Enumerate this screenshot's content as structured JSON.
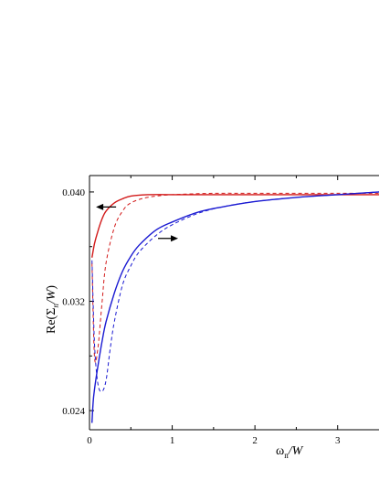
{
  "chart_data": {
    "type": "line",
    "xlabel": "ω_n/W",
    "ylabel": "Re(Σ_n/W)",
    "xlim": [
      0,
      3.5
    ],
    "ylim": [
      0.0226,
      0.0412
    ],
    "x_ticks": [
      0,
      1,
      2,
      3
    ],
    "x_tick_labels": [
      "0",
      "1",
      "2",
      "3"
    ],
    "y_ticks": [
      0.024,
      0.032,
      0.04
    ],
    "y_tick_labels": [
      "0.024",
      "0.032",
      "0.040"
    ],
    "grid": false,
    "colors": {
      "red": "#d21a1a",
      "blue": "#1a1ad2",
      "axis": "#000000"
    },
    "series": [
      {
        "color": "red",
        "style": "solid",
        "x": [
          0.03,
          0.06,
          0.1,
          0.15,
          0.2,
          0.3,
          0.4,
          0.5,
          0.7,
          1.0,
          1.5,
          2.0,
          2.5,
          3.0,
          3.5
        ],
        "y": [
          0.0352,
          0.0362,
          0.0371,
          0.038,
          0.0386,
          0.0392,
          0.0395,
          0.0397,
          0.0398,
          0.0398,
          0.0398,
          0.0398,
          0.0398,
          0.0398,
          0.0398
        ]
      },
      {
        "color": "red",
        "style": "dashed",
        "x": [
          0.03,
          0.06,
          0.1,
          0.15,
          0.2,
          0.3,
          0.4,
          0.5,
          0.7,
          1.0,
          1.5,
          2.0,
          2.5,
          3.0,
          3.5
        ],
        "y": [
          0.0348,
          0.028,
          0.0285,
          0.0318,
          0.0348,
          0.0374,
          0.0386,
          0.0392,
          0.0396,
          0.0398,
          0.0399,
          0.0399,
          0.0399,
          0.0399,
          0.0399
        ]
      },
      {
        "color": "blue",
        "style": "solid",
        "x": [
          0.03,
          0.05,
          0.1,
          0.15,
          0.2,
          0.3,
          0.4,
          0.5,
          0.6,
          0.8,
          1.0,
          1.3,
          1.6,
          2.0,
          2.5,
          3.0,
          3.5
        ],
        "y": [
          0.0231,
          0.025,
          0.0272,
          0.029,
          0.0305,
          0.0326,
          0.0342,
          0.0353,
          0.0361,
          0.0372,
          0.0378,
          0.0385,
          0.0389,
          0.0393,
          0.0396,
          0.0398,
          0.04
        ]
      },
      {
        "color": "blue",
        "style": "dashed",
        "x": [
          0.03,
          0.06,
          0.1,
          0.15,
          0.2,
          0.25,
          0.3,
          0.4,
          0.5,
          0.6,
          0.8,
          1.0,
          1.3,
          1.6,
          2.0,
          2.5,
          3.0,
          3.5
        ],
        "y": [
          0.035,
          0.029,
          0.026,
          0.0254,
          0.0262,
          0.0285,
          0.0305,
          0.0332,
          0.0346,
          0.0356,
          0.0368,
          0.0376,
          0.0384,
          0.0389,
          0.0393,
          0.0396,
          0.0398,
          0.04
        ]
      }
    ],
    "annotations": [
      {
        "kind": "arrow",
        "direction": "left",
        "x": 0.2,
        "y": 0.0389
      },
      {
        "kind": "arrow",
        "direction": "right",
        "x": 0.95,
        "y": 0.0366
      }
    ]
  }
}
